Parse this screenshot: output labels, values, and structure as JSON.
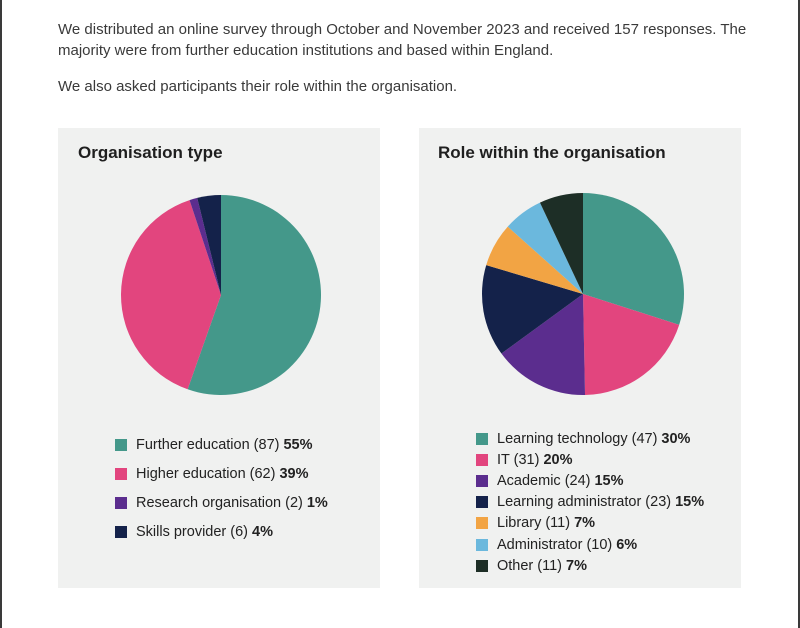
{
  "intro": {
    "paragraph1": "We distributed an online survey through October and November 2023 and received 157 responses. The majority were from further education institutions and based within England.",
    "paragraph2": "We also asked participants their role within the organisation."
  },
  "chart_data": [
    {
      "type": "pie",
      "title": "Organisation type",
      "legend_position": "bottom",
      "slices": [
        {
          "label": "Further education",
          "count": 87,
          "percent": 55,
          "count_text": "Further education (87)",
          "percent_text": "55%",
          "color": "#44988a"
        },
        {
          "label": "Higher education",
          "count": 62,
          "percent": 39,
          "count_text": "Higher education (62)",
          "percent_text": "39%",
          "color": "#e2457e"
        },
        {
          "label": "Research organisation",
          "count": 2,
          "percent": 1,
          "count_text": "Research organisation (2)",
          "percent_text": "1%",
          "color": "#5b2d8e"
        },
        {
          "label": "Skills provider",
          "count": 6,
          "percent": 4,
          "count_text": "Skills provider (6)",
          "percent_text": "4%",
          "color": "#14224a"
        }
      ]
    },
    {
      "type": "pie",
      "title": "Role within the organisation",
      "legend_position": "bottom",
      "slices": [
        {
          "label": "Learning technology",
          "count": 47,
          "percent": 30,
          "count_text": "Learning technology (47)",
          "percent_text": "30%",
          "color": "#44988a"
        },
        {
          "label": "IT",
          "count": 31,
          "percent": 20,
          "count_text": "IT (31)",
          "percent_text": "20%",
          "color": "#e2457e"
        },
        {
          "label": "Academic",
          "count": 24,
          "percent": 15,
          "count_text": "Academic (24)",
          "percent_text": "15%",
          "color": "#5b2d8e"
        },
        {
          "label": "Learning administrator",
          "count": 23,
          "percent": 15,
          "count_text": "Learning administrator (23)",
          "percent_text": "15%",
          "color": "#14224a"
        },
        {
          "label": "Library",
          "count": 11,
          "percent": 7,
          "count_text": "Library (11)",
          "percent_text": "7%",
          "color": "#f2a444"
        },
        {
          "label": "Administrator",
          "count": 10,
          "percent": 6,
          "count_text": "Administrator (10)",
          "percent_text": "6%",
          "color": "#6bb8dd"
        },
        {
          "label": "Other",
          "count": 11,
          "percent": 7,
          "count_text": "Other (11)",
          "percent_text": "7%",
          "color": "#1d2e26"
        }
      ]
    }
  ]
}
